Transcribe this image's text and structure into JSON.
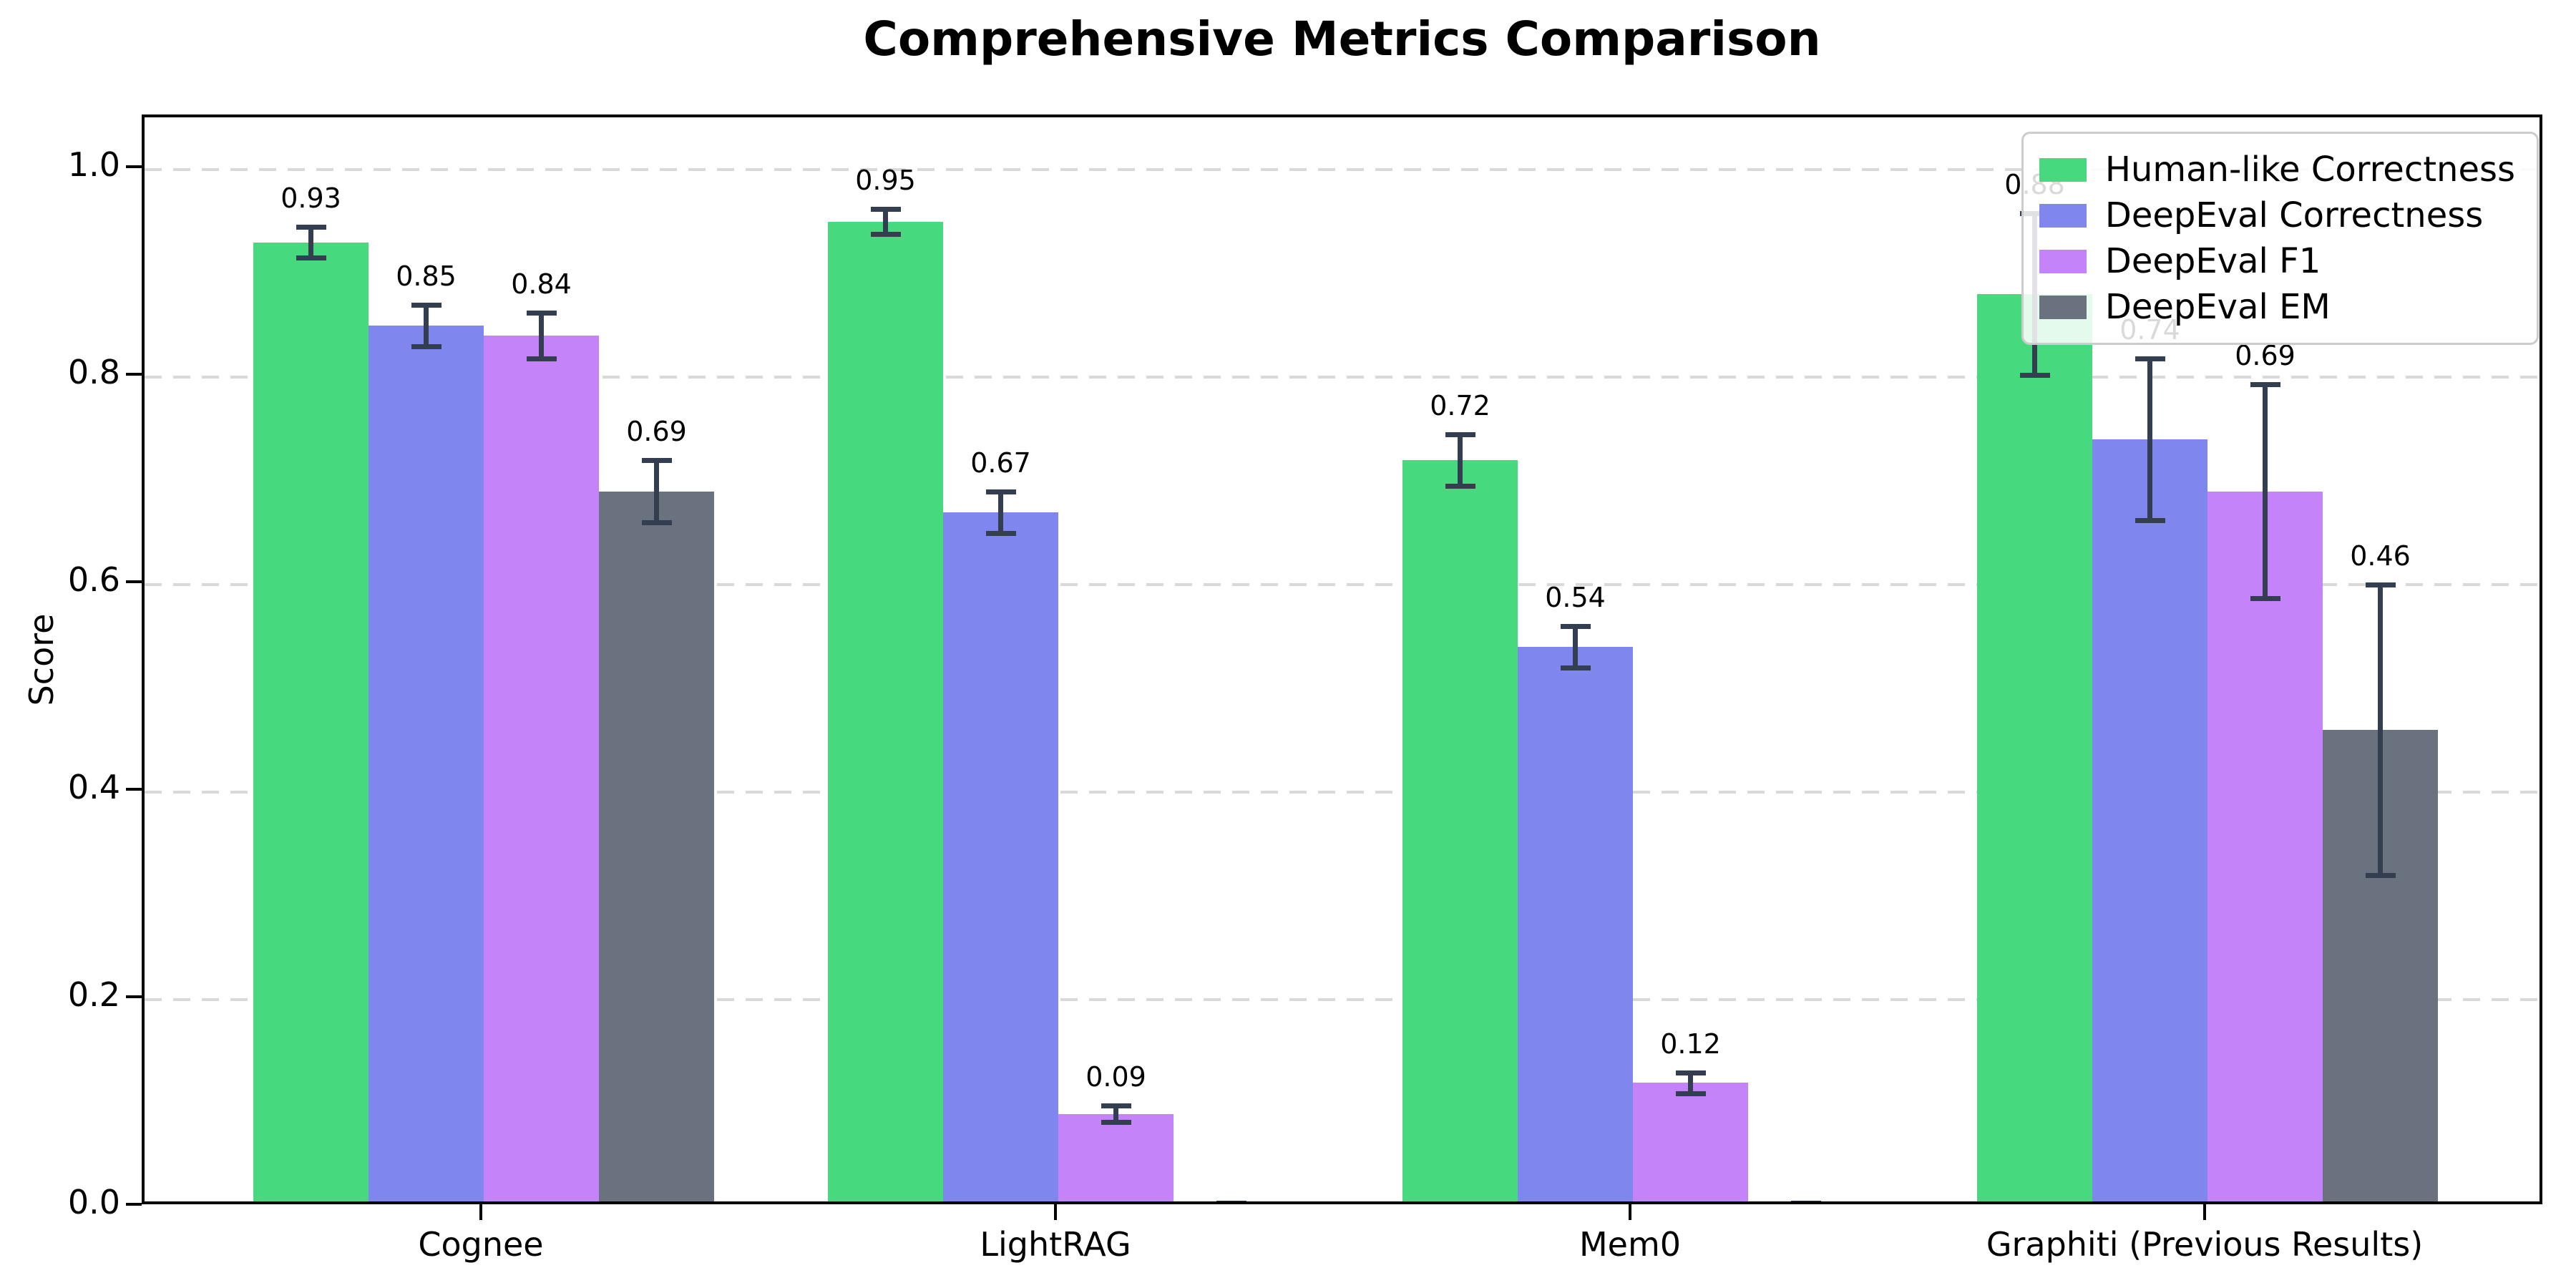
{
  "title": "Comprehensive Metrics Comparison",
  "ylabel": "Score",
  "chart_data": {
    "type": "bar",
    "categories": [
      "Cognee",
      "LightRAG",
      "Mem0",
      "Graphiti (Previous Results)"
    ],
    "series": [
      {
        "name": "Human-like Correctness",
        "color": "#46d97d",
        "values": [
          0.93,
          0.95,
          0.72,
          0.88
        ],
        "errors": [
          0.015,
          0.012,
          0.025,
          0.078
        ]
      },
      {
        "name": "DeepEval Correctness",
        "color": "#7f87ef",
        "values": [
          0.85,
          0.67,
          0.54,
          0.74
        ],
        "errors": [
          0.02,
          0.02,
          0.02,
          0.078
        ]
      },
      {
        "name": "DeepEval F1",
        "color": "#c583f9",
        "values": [
          0.84,
          0.09,
          0.12,
          0.69
        ],
        "errors": [
          0.022,
          0.008,
          0.01,
          0.103
        ]
      },
      {
        "name": "DeepEval EM",
        "color": "#6a7280",
        "values": [
          0.69,
          0.0,
          0.0,
          0.46
        ],
        "errors": [
          0.03,
          0.004,
          0.004,
          0.14
        ]
      }
    ],
    "ylim": [
      0,
      1.05
    ],
    "yticks": [
      "0.0",
      "0.2",
      "0.4",
      "0.6",
      "0.8",
      "1.0"
    ],
    "bar_labels_shown": [
      "0.93",
      "0.85",
      "0.84",
      "0.69",
      "0.95",
      "0.67",
      "0.09",
      "0.72",
      "0.54",
      "0.12",
      "0.88",
      "0.74",
      "0.69",
      "0.46"
    ],
    "grid": "horizontal dashed",
    "legend_position": "upper right",
    "errorbar_color": "#333e50"
  }
}
